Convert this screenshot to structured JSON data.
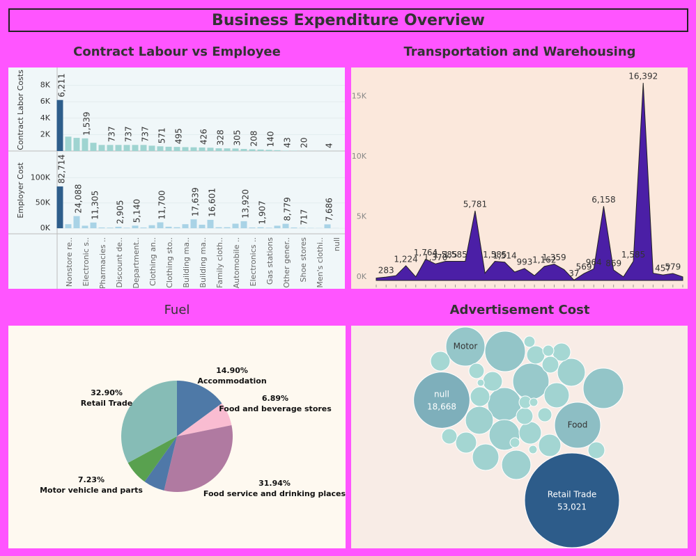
{
  "title": "Business Expenditure Overview",
  "chart_data": [
    {
      "type": "bar",
      "title": "Contract Labour vs Employee",
      "max_color": "#2e5e8b",
      "categories": [
        "Nonstore re..",
        null,
        "Electronic s..",
        null,
        "Pharmacies ..",
        null,
        "Discount de..",
        null,
        "Department..",
        null,
        "Clothing an..",
        null,
        "Clothing sto..",
        null,
        "Building ma..",
        null,
        "Building ma..",
        null,
        "Family cloth..",
        null,
        "Automobile ..",
        null,
        "Electronics ..",
        null,
        "Gas stations",
        null,
        "Other gener..",
        null,
        "Shoe stores",
        null,
        "Men's clothi..",
        null,
        "null",
        null
      ],
      "series": [
        {
          "name": "Contract Labor Costs",
          "color": "#9fd4d1",
          "ylim": [
            0,
            10000
          ],
          "yticks": [
            {
              "value": 2000,
              "label": "2K"
            },
            {
              "value": 4000,
              "label": "4K"
            },
            {
              "value": 6000,
              "label": "6K"
            },
            {
              "value": 8000,
              "label": "8K"
            }
          ],
          "values": [
            6211,
            1750,
            1600,
            1539,
            1000,
            737,
            737,
            737,
            737,
            737,
            737,
            650,
            571,
            520,
            495,
            470,
            450,
            426,
            400,
            328,
            320,
            305,
            250,
            208,
            180,
            140,
            100,
            43,
            30,
            20,
            10,
            8,
            4,
            2
          ],
          "value_labels": [
            "6,211",
            null,
            null,
            "1,539",
            null,
            null,
            "737",
            null,
            "737",
            null,
            "737",
            null,
            "571",
            null,
            "495",
            null,
            null,
            "426",
            null,
            "328",
            null,
            "305",
            null,
            "208",
            null,
            "140",
            null,
            "43",
            null,
            "20",
            null,
            null,
            "4",
            null
          ]
        },
        {
          "name": "Employer Cost",
          "color": "#a9d3e6",
          "ylim": [
            0,
            150000
          ],
          "yticks": [
            {
              "value": 0,
              "label": "0K"
            },
            {
              "value": 50000,
              "label": "50K"
            },
            {
              "value": 100000,
              "label": "100K"
            }
          ],
          "values": [
            82714,
            8000,
            24088,
            5000,
            11305,
            1500,
            1200,
            2905,
            1000,
            5140,
            1500,
            6000,
            11700,
            3000,
            2000,
            8000,
            17639,
            7000,
            16601,
            2000,
            2000,
            9000,
            13920,
            1500,
            1907,
            1000,
            5000,
            8779,
            1500,
            717,
            500,
            300,
            7686,
            200
          ],
          "value_labels": [
            "82,714",
            null,
            "24,088",
            null,
            "11,305",
            null,
            null,
            "2,905",
            null,
            "5,140",
            null,
            null,
            "11,700",
            null,
            null,
            null,
            "17,639",
            null,
            "16,601",
            null,
            null,
            null,
            "13,920",
            null,
            "1,907",
            null,
            null,
            "8,779",
            null,
            "717",
            null,
            null,
            "7,686",
            null
          ]
        }
      ]
    },
    {
      "type": "area",
      "title": "Transportation and Warehousing",
      "color": "#4b1fa6",
      "ylim": [
        0,
        17500
      ],
      "yticks": [
        {
          "value": 0,
          "label": "0K"
        },
        {
          "value": 5000,
          "label": "5K"
        },
        {
          "value": 10000,
          "label": "10K"
        },
        {
          "value": 15000,
          "label": "15K"
        }
      ],
      "values": [
        200,
        283,
        400,
        1224,
        300,
        1764,
        1370,
        1585,
        1585,
        1585,
        5781,
        600,
        1585,
        1514,
        700,
        993,
        400,
        1162,
        1359,
        900,
        37,
        569,
        964,
        6158,
        869,
        300,
        1585,
        16392,
        600,
        457,
        579,
        300
      ],
      "value_labels": [
        null,
        "283",
        null,
        "1,224",
        null,
        "1,764",
        "1,370",
        "1,585",
        "1,585",
        null,
        "5,781",
        null,
        "1,585",
        "1,514",
        null,
        "993",
        null,
        "1,162",
        "1,359",
        null,
        "37",
        "569",
        "964",
        "6,158",
        "869",
        null,
        "1,585",
        "16,392",
        null,
        "457",
        "579",
        null
      ]
    },
    {
      "type": "pie",
      "title": "Fuel",
      "categories": [
        "Accommodation",
        "Food and beverage stores",
        "Food service and drinking places",
        null,
        "Motor vehicle and parts",
        "Retail Trade"
      ],
      "values": [
        14.9,
        6.89,
        31.94,
        6.14,
        7.23,
        32.9
      ],
      "value_labels": [
        "14.90%",
        "6.89%",
        "31.94%",
        null,
        "7.23%",
        "32.90%"
      ],
      "colors": [
        "#4e79a7",
        "#f9bcd1",
        "#b07aa1",
        "#4f78a8",
        "#59a14f",
        "#86bcb6"
      ]
    },
    {
      "type": "bubble",
      "title": "Advertisement Cost",
      "color_range": [
        "#aadcd6",
        "#2d5c8a"
      ],
      "categories": [
        "Retail Trade",
        "null",
        "Food",
        "Motor",
        null,
        null,
        null,
        null,
        null,
        null,
        null,
        null,
        null,
        null,
        null,
        null,
        null,
        null,
        null,
        null,
        null,
        null,
        null,
        null,
        null,
        null,
        null,
        null,
        null,
        null,
        null,
        null,
        null,
        null,
        null
      ],
      "values": [
        53021,
        18668,
        12500,
        9000,
        9650,
        9650,
        7750,
        6600,
        5550,
        5060,
        4590,
        4140,
        4590,
        3720,
        2940,
        2940,
        2580,
        2250,
        2250,
        2250,
        1940,
        1940,
        1650,
        1650,
        1650,
        1390,
        1390,
        1150,
        930,
        730,
        730,
        560,
        410,
        410,
        290
      ],
      "value_labels": [
        "53,021",
        "18,668",
        null,
        null,
        null,
        null,
        null,
        null,
        null,
        null,
        null,
        null,
        null,
        null,
        null,
        null,
        null,
        null,
        null,
        null,
        null,
        null,
        null,
        null,
        null,
        null,
        null,
        null,
        null,
        null,
        null,
        null,
        null,
        null,
        null
      ]
    }
  ]
}
